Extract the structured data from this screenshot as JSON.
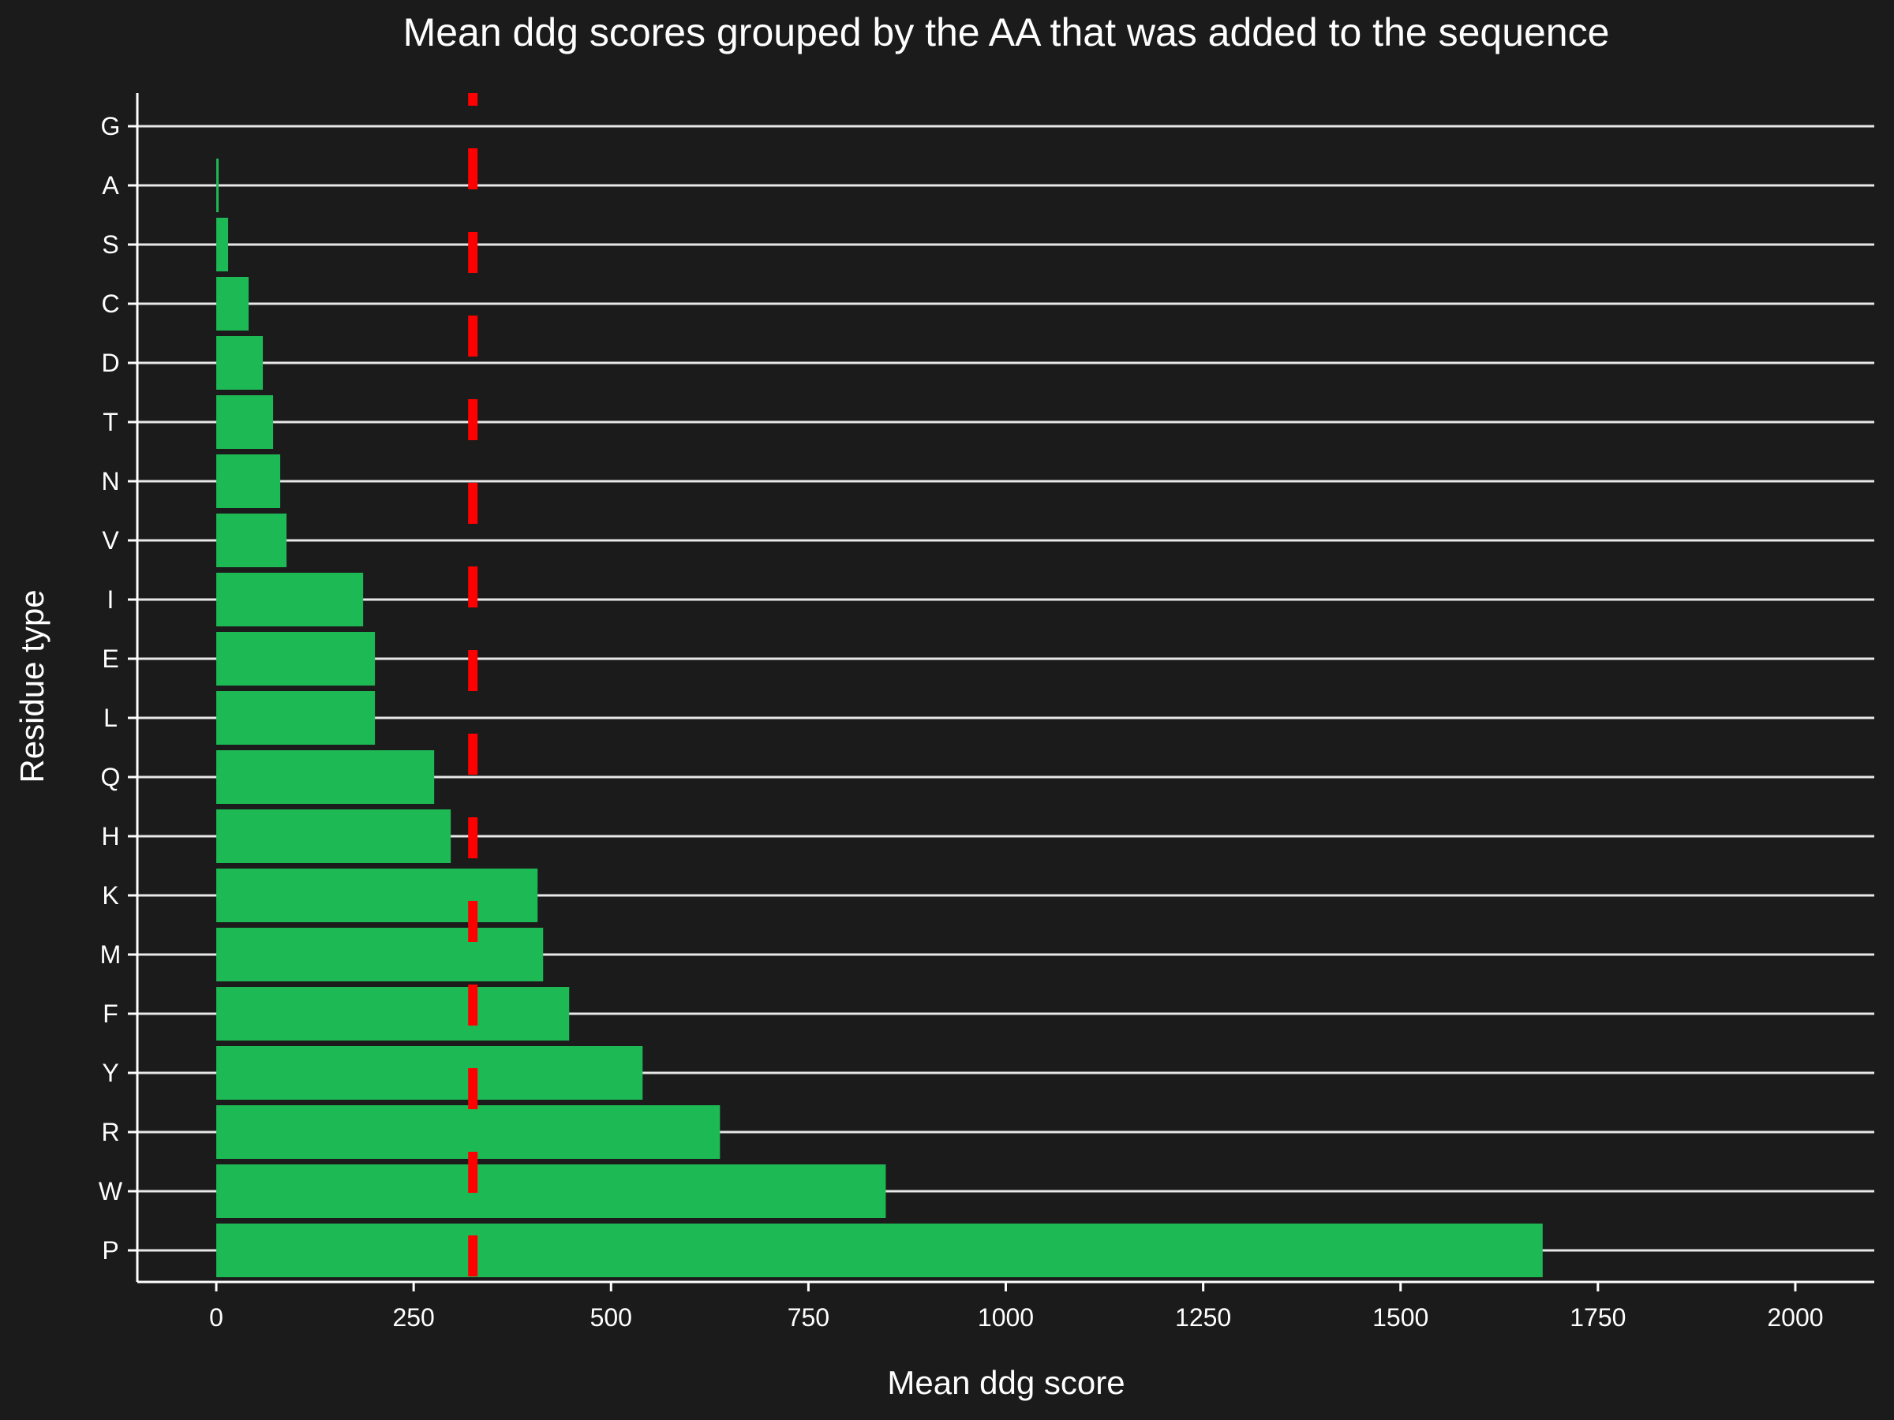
{
  "chart_data": {
    "type": "bar",
    "orientation": "horizontal",
    "title": "Mean ddg scores grouped by the AA that was added to the sequence",
    "xlabel": "Mean ddg score",
    "ylabel": "Residue type",
    "categories": [
      "G",
      "A",
      "S",
      "C",
      "D",
      "T",
      "N",
      "V",
      "I",
      "E",
      "L",
      "Q",
      "H",
      "K",
      "M",
      "F",
      "Y",
      "R",
      "W",
      "P"
    ],
    "values": [
      0,
      3,
      15,
      41,
      59,
      72,
      81,
      89,
      186,
      201,
      201,
      276,
      297,
      407,
      414,
      447,
      540,
      638,
      848,
      1680
    ],
    "xlim": [
      -100,
      2100
    ],
    "xticks": [
      0,
      250,
      500,
      750,
      1000,
      1250,
      1500,
      1750,
      2000
    ],
    "reference_line": {
      "x": 325,
      "style": "dashed",
      "color": "#ff0000"
    },
    "bar_color": "#1db954",
    "background_color": "#1b1b1b",
    "grid": "horizontal"
  }
}
